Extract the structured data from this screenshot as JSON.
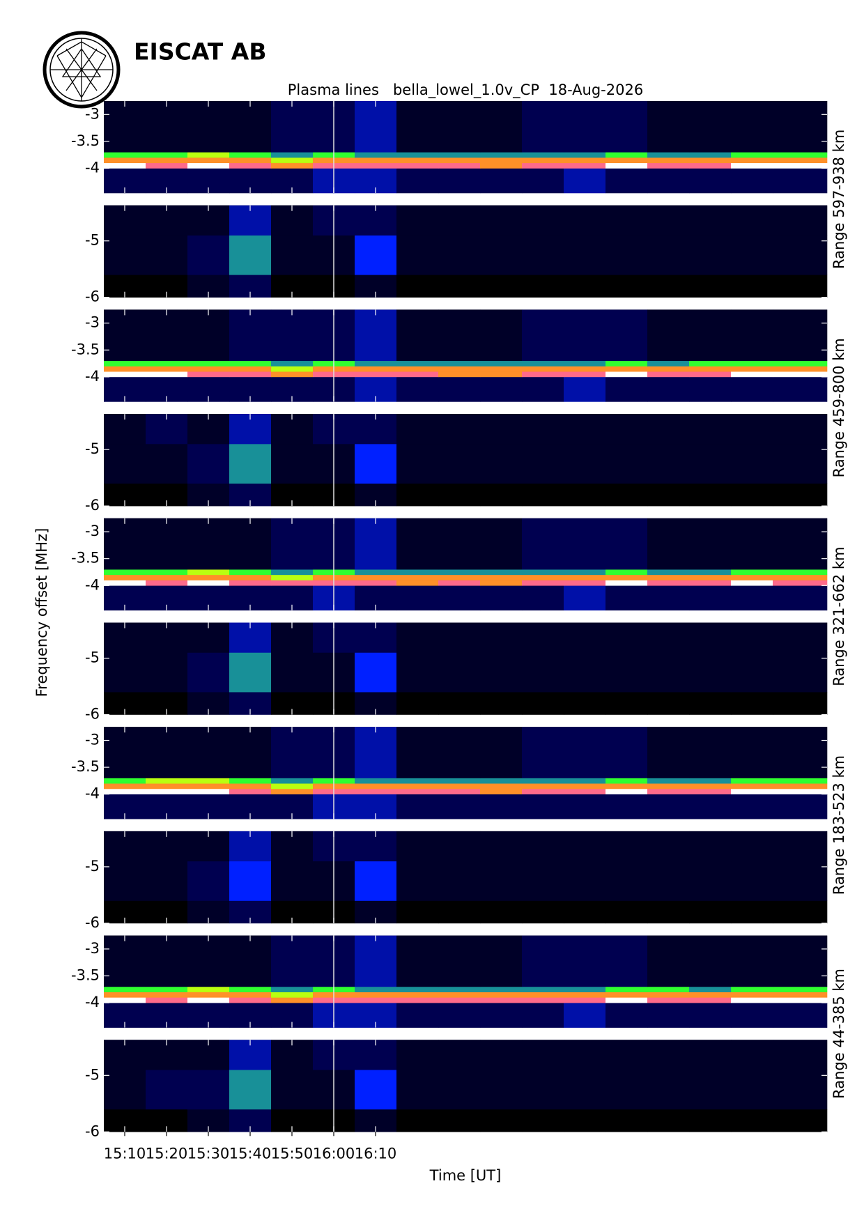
{
  "org_name": "EISCAT AB",
  "chart_data": {
    "type": "heatmap",
    "title": "Plasma lines   bella_lowel_1.0v_CP  18-Aug-2026",
    "x_label": "Time [UT]",
    "y_label": "Frequency offset [MHz]",
    "xlim": [
      905,
      1078
    ],
    "xticks": [
      {
        "value": 910,
        "label": "15:10"
      },
      {
        "value": 920,
        "label": "15:20"
      },
      {
        "value": 930,
        "label": "15:30"
      },
      {
        "value": 940,
        "label": "15:40"
      },
      {
        "value": 950,
        "label": "15:50"
      },
      {
        "value": 960,
        "label": "16:00"
      },
      {
        "value": 970,
        "label": "16:10"
      }
    ],
    "x_edges": [
      905,
      915,
      925,
      935,
      945,
      955,
      965,
      975,
      985,
      995,
      1005,
      1015,
      1025,
      1035,
      1045,
      1055,
      1065,
      1078
    ],
    "vline": 960,
    "vline_color": "#e0e0e0",
    "colormap": {
      "stops": [
        0,
        2,
        4,
        6,
        7.5,
        8.5,
        10
      ],
      "colors": [
        "#000000",
        "#000050",
        "#0020ff",
        "#30ff30",
        "#ffff00",
        "#ff2050",
        "#ffffff"
      ]
    },
    "panels": [
      {
        "range_label": "Range 597-938 km",
        "upper": {
          "ylim": [
            -4.46,
            -2.75
          ],
          "yticks": [
            -3,
            -3.5,
            -4
          ],
          "y_edges": [
            -4.46,
            -4.0,
            -3.9,
            -3.8,
            -3.7,
            -2.75
          ],
          "z": [
            [
              2,
              2,
              2,
              2,
              2,
              3,
              3,
              2,
              2,
              2,
              2,
              3,
              2,
              2,
              2,
              2,
              2
            ],
            [
              10,
              9,
              10,
              9,
              8,
              9,
              9,
              9,
              9,
              8,
              9,
              9,
              10,
              9,
              9,
              10,
              10
            ],
            [
              8,
              8,
              8,
              8,
              7,
              8,
              8,
              8,
              8,
              8,
              8,
              8,
              8,
              8,
              8,
              8,
              8
            ],
            [
              6,
              6,
              7,
              6,
              5,
              6,
              5,
              5,
              5,
              5,
              5,
              5,
              6,
              5,
              5,
              6,
              6
            ],
            [
              1,
              1,
              1,
              1,
              2,
              2,
              3,
              1,
              1,
              1,
              2,
              2,
              2,
              1,
              1,
              1,
              1
            ]
          ]
        },
        "lower": {
          "ylim": [
            -6,
            -4.37
          ],
          "yticks": [
            -5,
            -6
          ],
          "y_edges": [
            -6,
            -5.6,
            -4.9,
            -4.37
          ],
          "z": [
            [
              0,
              0,
              1,
              2,
              0,
              0,
              1,
              0,
              0,
              0,
              0,
              0,
              0,
              0,
              0,
              0,
              0
            ],
            [
              1,
              1,
              2,
              5,
              1,
              1,
              4,
              1,
              1,
              1,
              1,
              1,
              1,
              1,
              1,
              1,
              1
            ],
            [
              1,
              1,
              1,
              3,
              1,
              2,
              2,
              1,
              1,
              1,
              1,
              1,
              1,
              1,
              1,
              1,
              1
            ]
          ]
        }
      },
      {
        "range_label": "Range 459-800 km",
        "upper": {
          "ylim": [
            -4.46,
            -2.75
          ],
          "yticks": [
            -3,
            -3.5,
            -4
          ],
          "y_edges": [
            -4.46,
            -4.0,
            -3.9,
            -3.8,
            -3.7,
            -2.75
          ],
          "z": [
            [
              2,
              2,
              2,
              2,
              2,
              2,
              3,
              2,
              2,
              2,
              2,
              3,
              2,
              2,
              2,
              2,
              2
            ],
            [
              10,
              10,
              9,
              9,
              8,
              9,
              9,
              9,
              8,
              8,
              9,
              9,
              10,
              9,
              9,
              10,
              10
            ],
            [
              8,
              8,
              8,
              8,
              7,
              8,
              8,
              8,
              8,
              8,
              8,
              8,
              8,
              8,
              8,
              8,
              8
            ],
            [
              6,
              6,
              6,
              6,
              5,
              6,
              5,
              5,
              5,
              5,
              5,
              5,
              6,
              5,
              6,
              6,
              6
            ],
            [
              1,
              1,
              1,
              2,
              2,
              2,
              3,
              1,
              1,
              1,
              2,
              2,
              2,
              1,
              1,
              1,
              1
            ]
          ]
        },
        "lower": {
          "ylim": [
            -6,
            -4.37
          ],
          "yticks": [
            -5,
            -6
          ],
          "y_edges": [
            -6,
            -5.6,
            -4.9,
            -4.37
          ],
          "z": [
            [
              0,
              0,
              1,
              2,
              0,
              0,
              1,
              0,
              0,
              0,
              0,
              0,
              0,
              0,
              0,
              0,
              0
            ],
            [
              1,
              1,
              2,
              5,
              1,
              1,
              4,
              1,
              1,
              1,
              1,
              1,
              1,
              1,
              1,
              1,
              1
            ],
            [
              1,
              2,
              1,
              3,
              1,
              2,
              2,
              1,
              1,
              1,
              1,
              1,
              1,
              1,
              1,
              1,
              1
            ]
          ]
        }
      },
      {
        "range_label": "Range 321-662 km",
        "upper": {
          "ylim": [
            -4.46,
            -2.75
          ],
          "yticks": [
            -3,
            -3.5,
            -4
          ],
          "y_edges": [
            -4.46,
            -4.0,
            -3.9,
            -3.8,
            -3.7,
            -2.75
          ],
          "z": [
            [
              2,
              2,
              2,
              2,
              2,
              3,
              2,
              2,
              2,
              2,
              2,
              3,
              2,
              2,
              2,
              2,
              2
            ],
            [
              10,
              9,
              10,
              9,
              9,
              9,
              9,
              8,
              9,
              8,
              9,
              9,
              10,
              9,
              9,
              10,
              9
            ],
            [
              8,
              8,
              8,
              8,
              7,
              8,
              8,
              8,
              8,
              8,
              8,
              8,
              8,
              8,
              8,
              8,
              8
            ],
            [
              6,
              6,
              7,
              6,
              5,
              6,
              5,
              5,
              5,
              5,
              5,
              5,
              6,
              5,
              5,
              6,
              6
            ],
            [
              1,
              1,
              1,
              1,
              2,
              2,
              3,
              1,
              1,
              1,
              2,
              2,
              2,
              1,
              1,
              1,
              1
            ]
          ]
        },
        "lower": {
          "ylim": [
            -6,
            -4.37
          ],
          "yticks": [
            -5,
            -6
          ],
          "y_edges": [
            -6,
            -5.6,
            -4.9,
            -4.37
          ],
          "z": [
            [
              0,
              0,
              1,
              2,
              0,
              0,
              1,
              0,
              0,
              0,
              0,
              0,
              0,
              0,
              0,
              0,
              0
            ],
            [
              1,
              1,
              2,
              5,
              1,
              1,
              4,
              1,
              1,
              1,
              1,
              1,
              1,
              1,
              1,
              1,
              1
            ],
            [
              1,
              1,
              1,
              3,
              1,
              2,
              2,
              1,
              1,
              1,
              1,
              1,
              1,
              1,
              1,
              1,
              1
            ]
          ]
        }
      },
      {
        "range_label": "Range 183-523 km",
        "upper": {
          "ylim": [
            -4.46,
            -2.75
          ],
          "yticks": [
            -3,
            -3.5,
            -4
          ],
          "y_edges": [
            -4.46,
            -4.0,
            -3.9,
            -3.8,
            -3.7,
            -2.75
          ],
          "z": [
            [
              2,
              2,
              2,
              2,
              2,
              3,
              3,
              2,
              2,
              2,
              2,
              2,
              2,
              2,
              2,
              2,
              2
            ],
            [
              10,
              10,
              10,
              9,
              8,
              9,
              9,
              9,
              9,
              8,
              9,
              9,
              10,
              9,
              9,
              10,
              10
            ],
            [
              8,
              8,
              8,
              8,
              7,
              8,
              8,
              8,
              8,
              8,
              8,
              8,
              8,
              8,
              8,
              8,
              8
            ],
            [
              6,
              7,
              7,
              6,
              5,
              6,
              5,
              5,
              5,
              5,
              5,
              5,
              6,
              5,
              5,
              6,
              6
            ],
            [
              1,
              1,
              1,
              1,
              2,
              2,
              3,
              1,
              1,
              1,
              2,
              2,
              2,
              1,
              1,
              1,
              1
            ]
          ]
        },
        "lower": {
          "ylim": [
            -6,
            -4.37
          ],
          "yticks": [
            -5,
            -6
          ],
          "y_edges": [
            -6,
            -5.6,
            -4.9,
            -4.37
          ],
          "z": [
            [
              0,
              0,
              1,
              2,
              0,
              0,
              1,
              0,
              0,
              0,
              0,
              0,
              0,
              0,
              0,
              0,
              0
            ],
            [
              1,
              1,
              2,
              4,
              1,
              1,
              4,
              1,
              1,
              1,
              1,
              1,
              1,
              1,
              1,
              1,
              1
            ],
            [
              1,
              1,
              1,
              3,
              1,
              2,
              2,
              1,
              1,
              1,
              1,
              1,
              1,
              1,
              1,
              1,
              1
            ]
          ]
        }
      },
      {
        "range_label": "Range 44-385 km",
        "upper": {
          "ylim": [
            -4.46,
            -2.75
          ],
          "yticks": [
            -3,
            -3.5,
            -4
          ],
          "y_edges": [
            -4.46,
            -4.0,
            -3.9,
            -3.8,
            -3.7,
            -2.75
          ],
          "z": [
            [
              2,
              2,
              2,
              2,
              2,
              3,
              3,
              2,
              2,
              2,
              2,
              3,
              2,
              2,
              2,
              2,
              2
            ],
            [
              10,
              9,
              10,
              9,
              8,
              9,
              9,
              9,
              9,
              9,
              9,
              9,
              10,
              9,
              9,
              10,
              10
            ],
            [
              8,
              8,
              8,
              8,
              7,
              8,
              8,
              8,
              8,
              8,
              8,
              8,
              8,
              8,
              8,
              8,
              8
            ],
            [
              6,
              6,
              7,
              6,
              5,
              6,
              5,
              5,
              5,
              5,
              5,
              5,
              6,
              6,
              5,
              6,
              6
            ],
            [
              1,
              1,
              1,
              1,
              2,
              2,
              3,
              1,
              1,
              1,
              2,
              2,
              2,
              1,
              1,
              1,
              1
            ]
          ]
        },
        "lower": {
          "ylim": [
            -6,
            -4.37
          ],
          "yticks": [
            -5,
            -6
          ],
          "y_edges": [
            -6,
            -5.6,
            -4.9,
            -4.37
          ],
          "z": [
            [
              0,
              0,
              1,
              2,
              0,
              0,
              1,
              0,
              0,
              0,
              0,
              0,
              0,
              0,
              0,
              0,
              0
            ],
            [
              1,
              2,
              2,
              5,
              1,
              1,
              4,
              1,
              1,
              1,
              1,
              1,
              1,
              1,
              1,
              1,
              1
            ],
            [
              1,
              1,
              1,
              3,
              1,
              2,
              2,
              1,
              1,
              1,
              1,
              1,
              1,
              1,
              1,
              1,
              1
            ]
          ]
        }
      }
    ]
  }
}
